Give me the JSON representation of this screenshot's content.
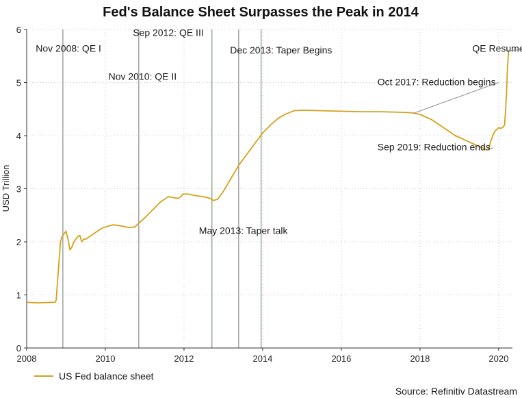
{
  "chart_data": {
    "type": "line",
    "title": "Fed's Balance Sheet Surpasses the Peak in 2014",
    "xlabel": "",
    "ylabel": "USD Trillion",
    "xlim": [
      2008,
      2020.35
    ],
    "ylim": [
      0,
      6
    ],
    "x_ticks": [
      2008,
      2010,
      2012,
      2014,
      2016,
      2018,
      2020
    ],
    "y_ticks": [
      0,
      1,
      2,
      3,
      4,
      5,
      6
    ],
    "grid": true,
    "series": [
      {
        "name": "US Fed balance sheet",
        "color": "#d4a017",
        "x": [
          2008.0,
          2008.3,
          2008.6,
          2008.72,
          2008.75,
          2008.78,
          2008.82,
          2008.86,
          2008.9,
          2008.95,
          2009.0,
          2009.05,
          2009.1,
          2009.15,
          2009.2,
          2009.25,
          2009.3,
          2009.35,
          2009.4,
          2009.45,
          2009.5,
          2009.6,
          2009.7,
          2009.8,
          2009.9,
          2010.0,
          2010.2,
          2010.4,
          2010.6,
          2010.75,
          2010.85,
          2011.0,
          2011.2,
          2011.4,
          2011.6,
          2011.75,
          2011.85,
          2011.92,
          2011.97,
          2012.1,
          2012.3,
          2012.5,
          2012.65,
          2012.75,
          2012.85,
          2012.95,
          2013.0,
          2013.2,
          2013.4,
          2013.6,
          2013.8,
          2014.0,
          2014.2,
          2014.4,
          2014.6,
          2014.8,
          2015.0,
          2015.5,
          2016.0,
          2016.5,
          2017.0,
          2017.5,
          2017.8,
          2018.0,
          2018.3,
          2018.6,
          2018.9,
          2019.2,
          2019.4,
          2019.6,
          2019.7,
          2019.75,
          2019.8,
          2019.85,
          2019.9,
          2020.0,
          2020.05,
          2020.1,
          2020.15,
          2020.17,
          2020.2,
          2020.22,
          2020.25
        ],
        "values": [
          0.86,
          0.85,
          0.86,
          0.86,
          0.9,
          1.2,
          1.6,
          2.0,
          2.1,
          2.15,
          2.2,
          2.05,
          1.85,
          1.9,
          2.0,
          2.05,
          2.1,
          2.12,
          2.0,
          2.05,
          2.05,
          2.1,
          2.15,
          2.2,
          2.25,
          2.28,
          2.32,
          2.3,
          2.27,
          2.28,
          2.35,
          2.45,
          2.6,
          2.75,
          2.85,
          2.83,
          2.82,
          2.85,
          2.9,
          2.9,
          2.87,
          2.85,
          2.82,
          2.78,
          2.8,
          2.9,
          2.95,
          3.2,
          3.45,
          3.65,
          3.85,
          4.05,
          4.2,
          4.33,
          4.41,
          4.47,
          4.48,
          4.47,
          4.46,
          4.45,
          4.45,
          4.44,
          4.43,
          4.4,
          4.3,
          4.15,
          4.0,
          3.9,
          3.83,
          3.77,
          3.73,
          3.76,
          3.9,
          4.0,
          4.08,
          4.15,
          4.14,
          4.15,
          4.2,
          4.4,
          4.8,
          5.2,
          5.58
        ]
      }
    ],
    "vlines": [
      {
        "x": 2008.92,
        "color": "#8c8c8c"
      },
      {
        "x": 2010.85,
        "color": "#8c8c8c"
      },
      {
        "x": 2012.71,
        "color": "#7a9a7a"
      },
      {
        "x": 2013.39,
        "color": "#8c8c8c"
      },
      {
        "x": 2013.96,
        "color": "#7a9a7a"
      }
    ],
    "annotations": [
      {
        "text": "Nov 2008: QE I",
        "x": 2008.23,
        "y": 5.58,
        "anchor": "start"
      },
      {
        "text": "Sep 2012: QE III",
        "x": 2010.7,
        "y": 5.88,
        "anchor": "start"
      },
      {
        "text": "Nov 2010: QE II",
        "x": 2010.08,
        "y": 5.05,
        "anchor": "start"
      },
      {
        "text": "Dec 2013: Taper Begins",
        "x": 2013.17,
        "y": 5.55,
        "anchor": "start"
      },
      {
        "text": "QE Resumes",
        "x": 2019.33,
        "y": 5.58,
        "anchor": "start",
        "pointer": [
          2020.23,
          5.6
        ]
      },
      {
        "text": "Oct 2017: Reduction begins",
        "x": 2016.92,
        "y": 4.95,
        "anchor": "start",
        "pointer": [
          2017.83,
          4.42
        ]
      },
      {
        "text": "Sep 2019: Reduction ends",
        "x": 2016.92,
        "y": 3.72,
        "anchor": "start",
        "pointer": [
          2019.68,
          3.72
        ]
      },
      {
        "text": "May 2013: Taper talk",
        "x": 2012.38,
        "y": 2.15,
        "anchor": "start"
      }
    ],
    "legend": {
      "label": "US Fed balance sheet",
      "position": "bottom-left"
    },
    "source": "Source: Refinitiv Datastream"
  }
}
